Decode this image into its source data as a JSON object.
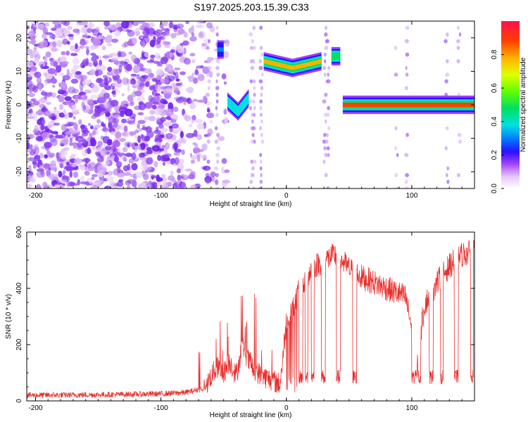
{
  "title": "S197.2025.203.15.39.C33",
  "chart_data": [
    {
      "type": "heatmap",
      "xlabel": "Height of straight line (km)",
      "ylabel": "Frequency (Hz)",
      "xlim": [
        -207,
        150
      ],
      "ylim": [
        -25,
        25
      ],
      "xticks": [
        -200,
        -100,
        0,
        100
      ],
      "yticks": [
        -20,
        -10,
        0,
        10,
        20
      ],
      "colorbar": {
        "label": "Normalized spectral amplitude",
        "range": [
          0,
          1
        ],
        "ticks": [
          "0.0",
          "0.2",
          "0.4",
          "0.6",
          "0.8"
        ]
      },
      "features": [
        {
          "kind": "tone",
          "x": [
            -55,
            -50
          ],
          "freq": 16.5,
          "peak_amplitude": 0.35
        },
        {
          "kind": "tone",
          "x": [
            -47,
            -30
          ],
          "freq": [
            1,
            -2,
            2
          ],
          "peak_amplitude": 0.45
        },
        {
          "kind": "tone",
          "x": [
            -18,
            28
          ],
          "freq": [
            13,
            11,
            13
          ],
          "peak_amplitude": 0.85
        },
        {
          "kind": "tone",
          "x": [
            36,
            43
          ],
          "freq": 14.5,
          "peak_amplitude": 0.55
        },
        {
          "kind": "tone",
          "x": [
            45,
            150
          ],
          "freq": 0,
          "peak_amplitude": 0.9
        }
      ]
    },
    {
      "type": "line",
      "xlabel": "Height of straight line (km)",
      "ylabel": "SNR (10 * v/v)",
      "xlim": [
        -207,
        150
      ],
      "ylim": [
        0,
        600
      ],
      "xticks": [
        -200,
        -100,
        0,
        100
      ],
      "yticks": [
        0,
        200,
        400,
        600
      ],
      "color": "#e8302e",
      "series_points": [
        [
          -207,
          20
        ],
        [
          -150,
          22
        ],
        [
          -100,
          25
        ],
        [
          -80,
          30
        ],
        [
          -65,
          45
        ],
        [
          -60,
          90
        ],
        [
          -55,
          120
        ],
        [
          -50,
          100
        ],
        [
          -45,
          140
        ],
        [
          -40,
          90
        ],
        [
          -35,
          200
        ],
        [
          -30,
          140
        ],
        [
          -25,
          110
        ],
        [
          -20,
          90
        ],
        [
          -15,
          80
        ],
        [
          -10,
          70
        ],
        [
          -5,
          60
        ],
        [
          0,
          280
        ],
        [
          5,
          330
        ],
        [
          10,
          390
        ],
        [
          20,
          470
        ],
        [
          30,
          500
        ],
        [
          40,
          520
        ],
        [
          50,
          470
        ],
        [
          60,
          440
        ],
        [
          70,
          420
        ],
        [
          80,
          400
        ],
        [
          90,
          380
        ],
        [
          95,
          370
        ],
        [
          100,
          260
        ],
        [
          103,
          100
        ],
        [
          110,
          340
        ],
        [
          120,
          420
        ],
        [
          130,
          480
        ],
        [
          140,
          520
        ],
        [
          150,
          530
        ]
      ]
    }
  ]
}
